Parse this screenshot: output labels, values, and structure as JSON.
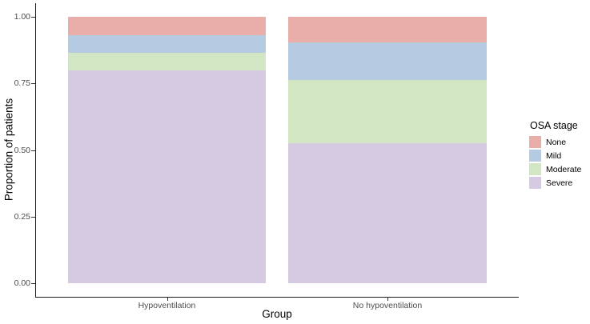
{
  "figure": {
    "background_color": "#FFFFFF",
    "axis_line_color": "#1A1A1A",
    "tick_color": "#333333",
    "tick_label_color": "#4D4D4D",
    "title_color": "#000000"
  },
  "chart_data": {
    "type": "bar",
    "subtype": "stacked-proportion",
    "title": "",
    "xlabel": "Group",
    "ylabel": "Proportion of patients",
    "categories": [
      "Hypoventilation",
      "No hypoventilation"
    ],
    "series": [
      {
        "name": "None",
        "color": "#E9AEA9",
        "values": [
          0.069,
          0.095
        ]
      },
      {
        "name": "Mild",
        "color": "#B5CBE2",
        "values": [
          0.066,
          0.143
        ]
      },
      {
        "name": "Moderate",
        "color": "#D3E6C4",
        "values": [
          0.066,
          0.238
        ]
      },
      {
        "name": "Severe",
        "color": "#D6CAE2",
        "values": [
          0.799,
          0.524
        ]
      }
    ],
    "stack_order_top_to_bottom": [
      "None",
      "Mild",
      "Moderate",
      "Severe"
    ],
    "ylim": [
      0,
      1
    ],
    "ytick_labels": [
      "1.00",
      "0.75",
      "0.50",
      "0.25",
      "0.00"
    ],
    "ytick_values": [
      1.0,
      0.75,
      0.5,
      0.25,
      0.0
    ],
    "grid": "off",
    "legend_title": "OSA stage",
    "legend_position": "right"
  }
}
